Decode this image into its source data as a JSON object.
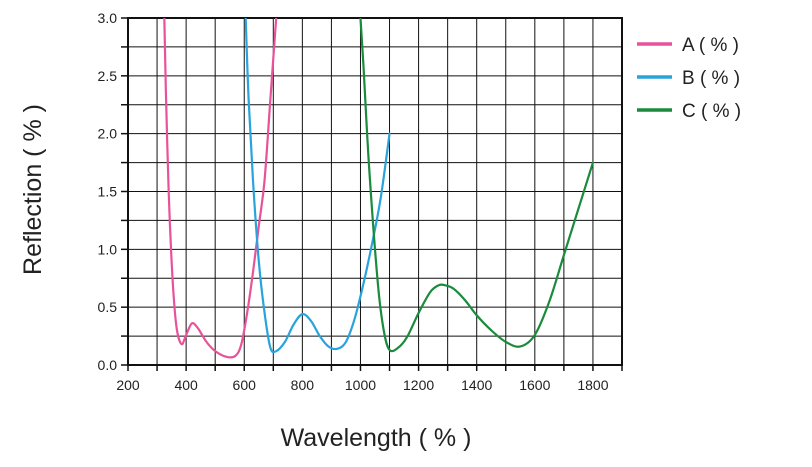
{
  "chart_data": {
    "type": "line",
    "title": "",
    "xlabel": "Wavelength ( % )",
    "ylabel": "Reflection ( % )",
    "xlim": [
      200,
      1900
    ],
    "ylim": [
      0,
      3.0
    ],
    "x_ticks": [
      200,
      400,
      600,
      800,
      1000,
      1200,
      1400,
      1600,
      1800
    ],
    "x_tick_labels": [
      "200",
      "400",
      "600",
      "800",
      "1000",
      "1200",
      "1400",
      "1600",
      "1800"
    ],
    "y_ticks": [
      0,
      0.5,
      1.0,
      1.5,
      2.0,
      2.5,
      3.0
    ],
    "y_tick_labels": [
      "0.0",
      "0.5",
      "1.0",
      "1.5",
      "2.0",
      "2.5",
      "3.0"
    ],
    "grid": true,
    "legend_position": "top-right, outside plot",
    "series": [
      {
        "name": "A ( % )",
        "color": "#e8529a",
        "x": [
          325,
          330,
          340,
          350,
          360,
          370,
          385,
          400,
          420,
          440,
          470,
          500,
          540,
          570,
          590,
          610,
          630,
          650,
          670,
          690,
          710
        ],
        "y": [
          3.0,
          2.4,
          1.5,
          0.9,
          0.5,
          0.28,
          0.18,
          0.26,
          0.36,
          0.32,
          0.2,
          0.12,
          0.07,
          0.08,
          0.18,
          0.45,
          0.8,
          1.2,
          1.6,
          2.3,
          3.0
        ]
      },
      {
        "name": "B ( % )",
        "color": "#29a3dc",
        "x": [
          605,
          615,
          630,
          650,
          670,
          690,
          710,
          740,
          770,
          800,
          830,
          860,
          890,
          920,
          950,
          980,
          1010,
          1040,
          1070,
          1100
        ],
        "y": [
          3.0,
          2.3,
          1.6,
          0.9,
          0.45,
          0.15,
          0.12,
          0.2,
          0.35,
          0.44,
          0.38,
          0.25,
          0.16,
          0.14,
          0.2,
          0.4,
          0.7,
          1.05,
          1.45,
          2.0
        ]
      },
      {
        "name": "C ( % )",
        "color": "#1a8a3c",
        "x": [
          1000,
          1010,
          1030,
          1060,
          1080,
          1100,
          1130,
          1160,
          1200,
          1240,
          1270,
          1290,
          1320,
          1360,
          1400,
          1450,
          1500,
          1550,
          1600,
          1650,
          1700,
          1750,
          1800
        ],
        "y": [
          3.0,
          2.6,
          1.7,
          0.7,
          0.3,
          0.13,
          0.15,
          0.24,
          0.45,
          0.63,
          0.69,
          0.69,
          0.66,
          0.56,
          0.43,
          0.3,
          0.2,
          0.16,
          0.26,
          0.55,
          0.95,
          1.35,
          1.75
        ]
      }
    ]
  }
}
